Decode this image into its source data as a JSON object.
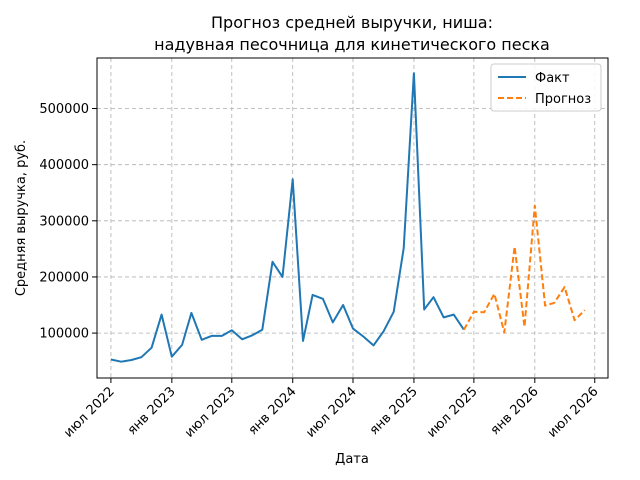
{
  "chart_data": {
    "type": "line",
    "title": "Прогноз средней выручки, ниша:",
    "subtitle": "надувная песочница для кинетического песка",
    "xlabel": "Дата",
    "ylabel": "Средняя выручка, руб.",
    "ylim": [
      20000,
      590000
    ],
    "xlim": [
      "2022-05-20",
      "2026-08-10"
    ],
    "grid": true,
    "legend_position": "top-right",
    "x_ticks": [
      {
        "date": "2022-07-01",
        "label": "июл 2022"
      },
      {
        "date": "2023-01-01",
        "label": "янв 2023"
      },
      {
        "date": "2023-07-01",
        "label": "июл 2023"
      },
      {
        "date": "2024-01-01",
        "label": "янв 2024"
      },
      {
        "date": "2024-07-01",
        "label": "июл 2024"
      },
      {
        "date": "2025-01-01",
        "label": "янв 2025"
      },
      {
        "date": "2025-07-01",
        "label": "июл 2025"
      },
      {
        "date": "2026-01-01",
        "label": "янв 2026"
      },
      {
        "date": "2026-07-01",
        "label": "июл 2026"
      }
    ],
    "y_ticks": [
      {
        "value": 100000,
        "label": "100000"
      },
      {
        "value": 200000,
        "label": "200000"
      },
      {
        "value": 300000,
        "label": "300000"
      },
      {
        "value": 400000,
        "label": "400000"
      },
      {
        "value": 500000,
        "label": "500000"
      }
    ],
    "series": [
      {
        "name": "Факт",
        "color": "#1f77b4",
        "style": "solid",
        "points": [
          {
            "x": "2022-07-01",
            "y": 53000
          },
          {
            "x": "2022-08-01",
            "y": 49000
          },
          {
            "x": "2022-09-01",
            "y": 52000
          },
          {
            "x": "2022-10-01",
            "y": 57000
          },
          {
            "x": "2022-11-01",
            "y": 74000
          },
          {
            "x": "2022-12-01",
            "y": 133000
          },
          {
            "x": "2023-01-01",
            "y": 58000
          },
          {
            "x": "2023-02-01",
            "y": 79000
          },
          {
            "x": "2023-03-01",
            "y": 136000
          },
          {
            "x": "2023-04-01",
            "y": 88000
          },
          {
            "x": "2023-05-01",
            "y": 95000
          },
          {
            "x": "2023-06-01",
            "y": 95000
          },
          {
            "x": "2023-07-01",
            "y": 105000
          },
          {
            "x": "2023-08-01",
            "y": 89000
          },
          {
            "x": "2023-09-01",
            "y": 96000
          },
          {
            "x": "2023-10-01",
            "y": 106000
          },
          {
            "x": "2023-11-01",
            "y": 227000
          },
          {
            "x": "2023-12-01",
            "y": 200000
          },
          {
            "x": "2024-01-01",
            "y": 374000
          },
          {
            "x": "2024-02-01",
            "y": 86000
          },
          {
            "x": "2024-03-01",
            "y": 168000
          },
          {
            "x": "2024-04-01",
            "y": 161000
          },
          {
            "x": "2024-05-01",
            "y": 119000
          },
          {
            "x": "2024-06-01",
            "y": 150000
          },
          {
            "x": "2024-07-01",
            "y": 108000
          },
          {
            "x": "2024-08-01",
            "y": 94000
          },
          {
            "x": "2024-09-01",
            "y": 78000
          },
          {
            "x": "2024-10-01",
            "y": 103000
          },
          {
            "x": "2024-11-01",
            "y": 138000
          },
          {
            "x": "2024-12-01",
            "y": 251000
          },
          {
            "x": "2025-01-01",
            "y": 563000
          },
          {
            "x": "2025-02-01",
            "y": 142000
          },
          {
            "x": "2025-03-01",
            "y": 164000
          },
          {
            "x": "2025-04-01",
            "y": 128000
          },
          {
            "x": "2025-05-01",
            "y": 133000
          },
          {
            "x": "2025-06-01",
            "y": 106000
          }
        ]
      },
      {
        "name": "Прогноз",
        "color": "#ff7f0e",
        "style": "dashed",
        "points": [
          {
            "x": "2025-06-01",
            "y": 106000
          },
          {
            "x": "2025-07-01",
            "y": 138000
          },
          {
            "x": "2025-08-01",
            "y": 137000
          },
          {
            "x": "2025-09-01",
            "y": 170000
          },
          {
            "x": "2025-10-01",
            "y": 101000
          },
          {
            "x": "2025-11-01",
            "y": 254000
          },
          {
            "x": "2025-12-01",
            "y": 111000
          },
          {
            "x": "2026-01-01",
            "y": 327000
          },
          {
            "x": "2026-02-01",
            "y": 149000
          },
          {
            "x": "2026-03-01",
            "y": 154000
          },
          {
            "x": "2026-04-01",
            "y": 182000
          },
          {
            "x": "2026-05-01",
            "y": 123000
          },
          {
            "x": "2026-06-01",
            "y": 141000
          }
        ]
      }
    ]
  }
}
